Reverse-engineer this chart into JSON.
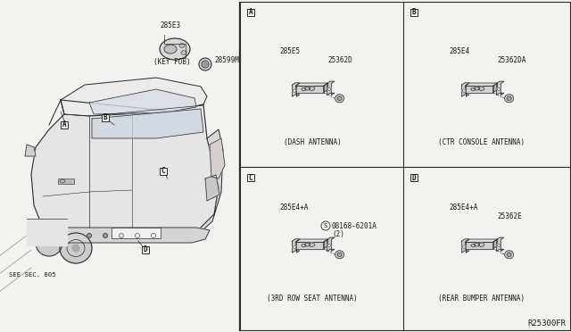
{
  "bg_color": "#f2f2ee",
  "line_color": "#2a2a2a",
  "text_color": "#1a1a1a",
  "fig_width": 6.4,
  "fig_height": 3.72,
  "diagram_ref": "R25300FR",
  "see_sec": "SEE SEC. 805",
  "key_fob_label": "285E3",
  "key_fob_sub": "28599M",
  "key_fob_caption": "(KEY FOB)",
  "panel_A_part1": "285E5",
  "panel_A_part2": "25362D",
  "panel_A_caption": "(DASH ANTENNA)",
  "panel_B_part1": "285E4",
  "panel_B_part2": "25362DA",
  "panel_B_caption": "(CTR CONSOLE ANTENNA)",
  "panel_C_part1": "285E4+A",
  "panel_C_part2": "08168-6201A",
  "panel_C_part2b": "(2)",
  "panel_C_part2_circle": "S",
  "panel_C_caption": "(3RD ROW SEAT ANTENNA)",
  "panel_D_part1": "285E4+A",
  "panel_D_part2": "25362E",
  "panel_D_caption": "(REAR BUMPER ANTENNA)"
}
